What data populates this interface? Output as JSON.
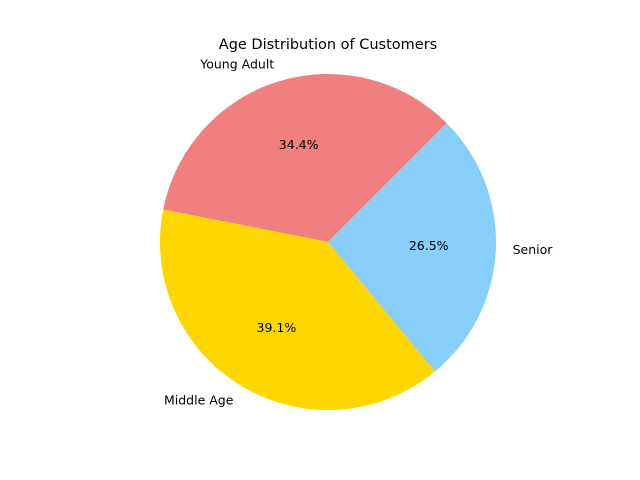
{
  "chart_data": {
    "type": "pie",
    "title": "Age Distribution of Customers",
    "categories": [
      "Young Adult",
      "Middle Age",
      "Senior"
    ],
    "values": [
      34.4,
      39.1,
      26.5
    ],
    "value_labels": [
      "34.4%",
      "39.1%",
      "26.5%"
    ],
    "colors": [
      "#F08080",
      "#FFD700",
      "#87CEFA"
    ],
    "start_angle_deg": 45,
    "direction": "counterclockwise",
    "legend": "none"
  }
}
